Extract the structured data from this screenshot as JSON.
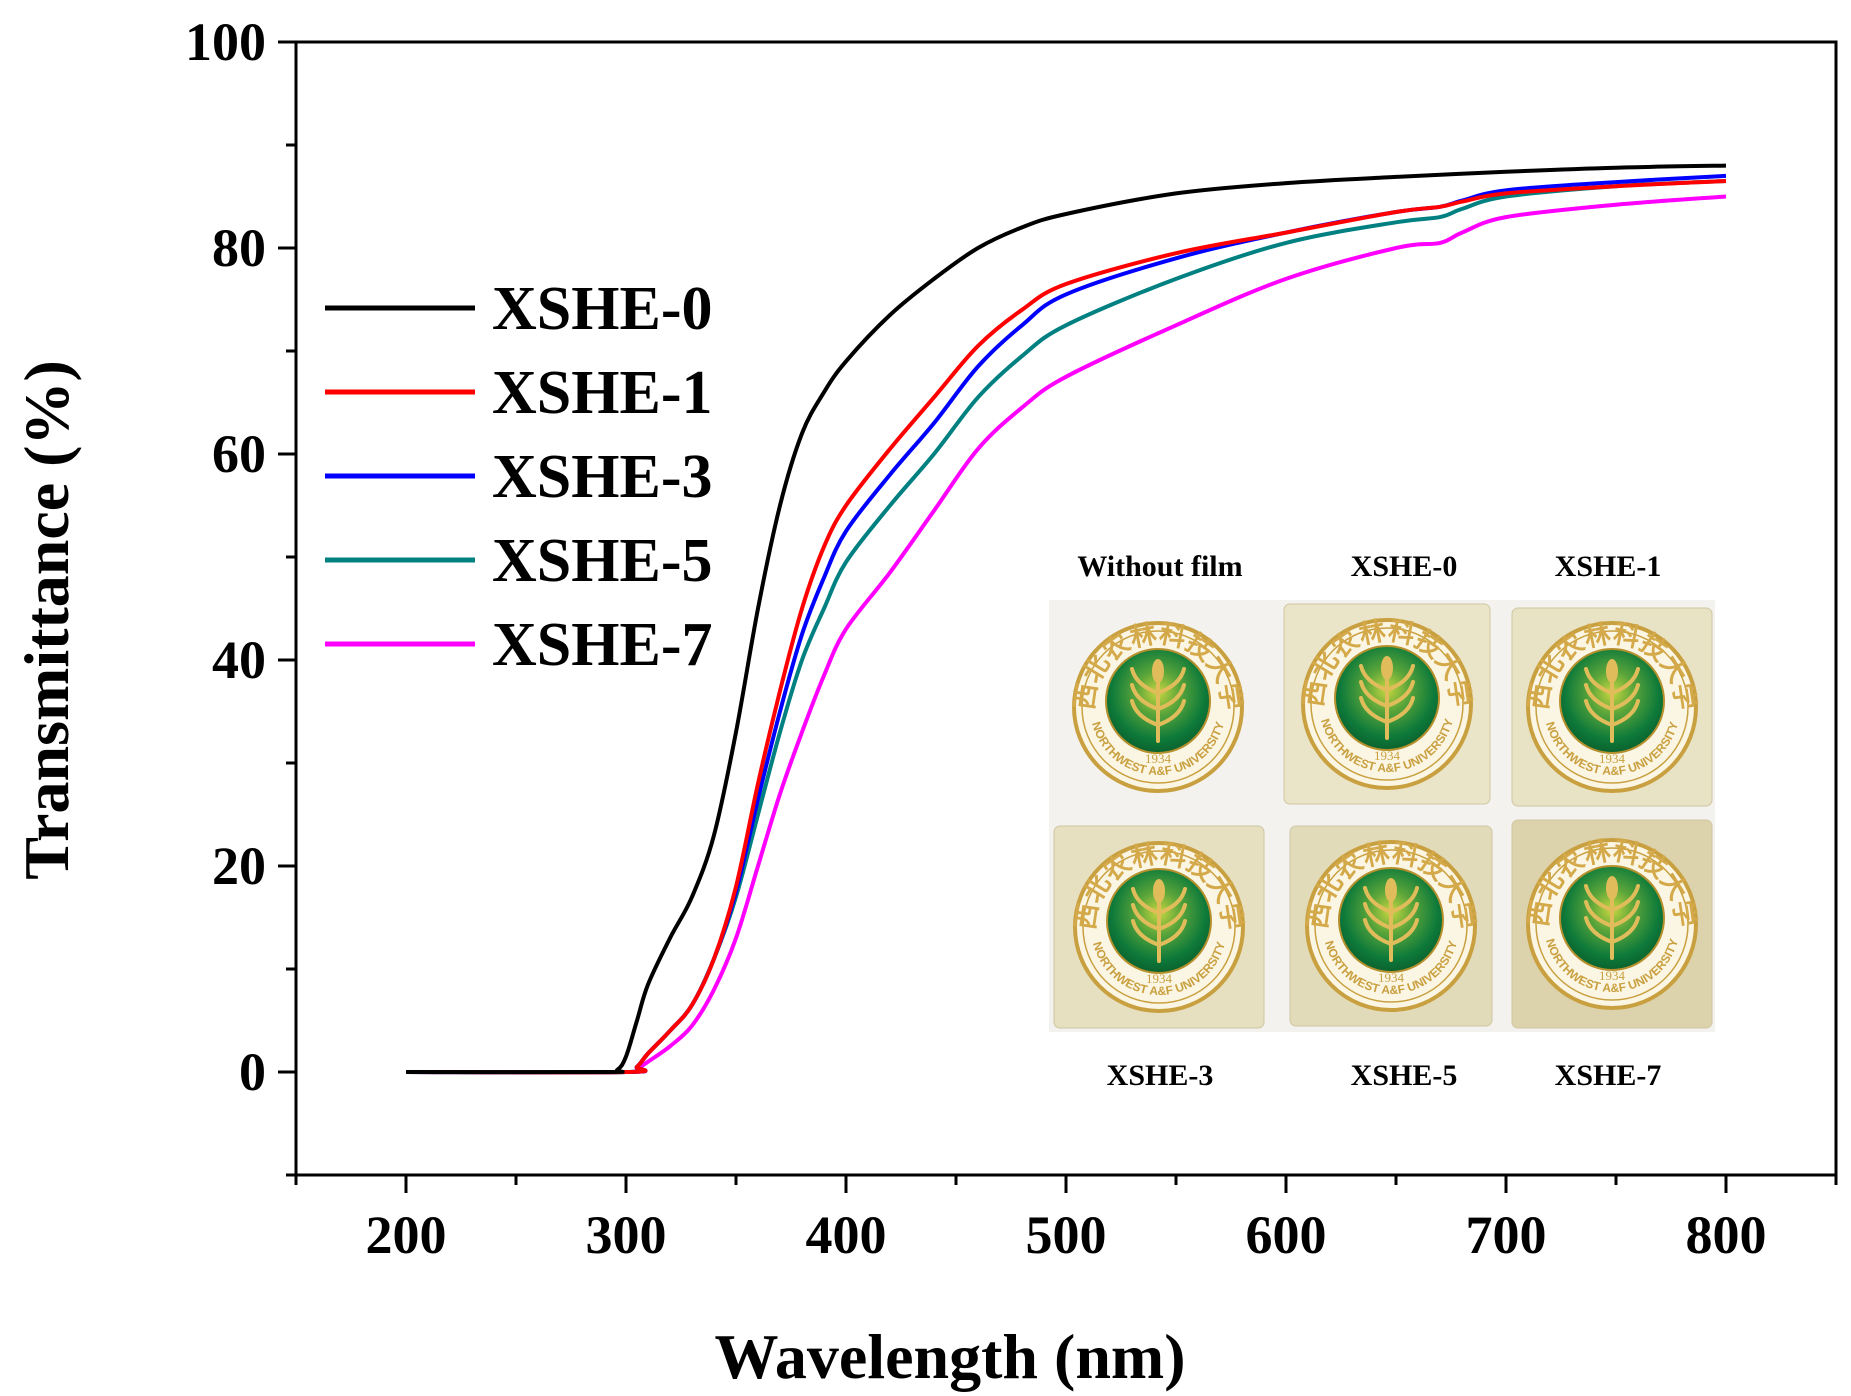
{
  "chart_data": {
    "type": "line",
    "xlabel": "Wavelength (nm)",
    "ylabel": "Transmittance (%)",
    "xlim": [
      150,
      850
    ],
    "ylim": [
      -10,
      100
    ],
    "xticks": [
      200,
      300,
      400,
      500,
      600,
      700,
      800
    ],
    "yticks": [
      0,
      20,
      40,
      60,
      80,
      100
    ],
    "legend_position": "top-left",
    "series": [
      {
        "name": "XSHE-0",
        "color": "#000000",
        "x": [
          200,
          290,
          296,
          300,
          305,
          310,
          320,
          330,
          340,
          350,
          360,
          370,
          380,
          390,
          400,
          420,
          440,
          460,
          480,
          500,
          550,
          600,
          650,
          700,
          750,
          800
        ],
        "y": [
          0,
          0,
          0.2,
          1.5,
          5,
          8.5,
          13,
          17,
          23,
          33,
          45,
          55,
          62,
          66,
          69,
          73.5,
          77,
          80,
          82,
          83.3,
          85.3,
          86.3,
          86.9,
          87.4,
          87.8,
          88
        ]
      },
      {
        "name": "XSHE-1",
        "color": "#ff0000",
        "x": [
          200,
          300,
          305,
          310,
          320,
          330,
          340,
          350,
          360,
          370,
          380,
          390,
          400,
          420,
          440,
          460,
          480,
          500,
          550,
          600,
          650,
          670,
          680,
          700,
          750,
          800
        ],
        "y": [
          0,
          0,
          0.5,
          1.8,
          4,
          6.5,
          11,
          18,
          28,
          37,
          45,
          51,
          55,
          60.5,
          65.5,
          70.5,
          74,
          76.5,
          79.5,
          81.5,
          83.5,
          84,
          84.5,
          85.3,
          86,
          86.5
        ]
      },
      {
        "name": "XSHE-3",
        "color": "#0000ff",
        "x": [
          200,
          300,
          305,
          310,
          320,
          330,
          340,
          350,
          360,
          370,
          380,
          390,
          400,
          420,
          440,
          460,
          480,
          500,
          550,
          600,
          650,
          670,
          680,
          700,
          750,
          800
        ],
        "y": [
          0,
          0,
          0.5,
          1.8,
          4,
          6.5,
          11,
          17.5,
          26.5,
          35,
          42.5,
          48,
          52.5,
          58,
          63,
          68.5,
          72.5,
          75.5,
          79,
          81.5,
          83.5,
          84,
          84.6,
          85.6,
          86.4,
          87
        ]
      },
      {
        "name": "XSHE-5",
        "color": "#008080",
        "x": [
          200,
          300,
          305,
          310,
          320,
          330,
          340,
          350,
          360,
          370,
          380,
          390,
          400,
          420,
          440,
          460,
          480,
          500,
          550,
          600,
          650,
          670,
          680,
          700,
          750,
          800
        ],
        "y": [
          0,
          0,
          0.5,
          1.8,
          4,
          6.5,
          11,
          17,
          25,
          33,
          40,
          45,
          49.5,
          55,
          60,
          65.5,
          69.5,
          72.5,
          77,
          80.5,
          82.5,
          83,
          83.8,
          85,
          86,
          86.5
        ]
      },
      {
        "name": "XSHE-7",
        "color": "#ff00ff",
        "x": [
          200,
          300,
          305,
          310,
          320,
          330,
          340,
          350,
          360,
          370,
          380,
          390,
          400,
          420,
          440,
          460,
          480,
          500,
          550,
          600,
          650,
          670,
          680,
          700,
          750,
          800
        ],
        "y": [
          0,
          0,
          0.3,
          1.0,
          2.5,
          4.5,
          8,
          13,
          20,
          27,
          33,
          38.5,
          43,
          48.5,
          54.5,
          60.5,
          64.5,
          67.5,
          72.5,
          77,
          80,
          80.5,
          81.5,
          83,
          84.2,
          85
        ]
      }
    ]
  },
  "inset": {
    "top_labels": [
      "Without film",
      "XSHE-0",
      "XSHE-1"
    ],
    "bottom_labels": [
      "XSHE-3",
      "XSHE-5",
      "XSHE-7"
    ],
    "seal_chinese": "西北农林科技大学",
    "seal_english": "NORTHWEST A&F UNIVERSITY",
    "seal_year": "1934",
    "photo_colors": [
      "#f4f4f0",
      "#eae5c8",
      "#e9e3c6",
      "#e6e0c0",
      "#e2dbba",
      "#dcd3ac"
    ]
  }
}
